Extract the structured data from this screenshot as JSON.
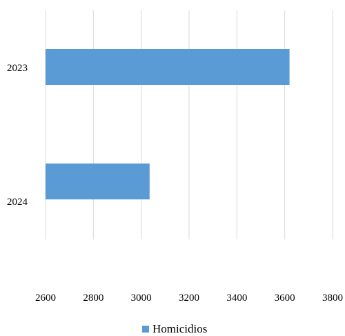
{
  "chart_data": {
    "type": "bar",
    "orientation": "horizontal",
    "categories": [
      "2023",
      "2024"
    ],
    "series": [
      {
        "name": "Homicidios",
        "values": [
          3620,
          3035
        ],
        "color": "#5b9bd5"
      }
    ],
    "x_ticks": [
      "2600",
      "2800",
      "3000",
      "3200",
      "3400",
      "3600",
      "3800"
    ],
    "xlim": [
      2600,
      3800
    ],
    "grid": "vertical",
    "legend_position": "bottom"
  }
}
